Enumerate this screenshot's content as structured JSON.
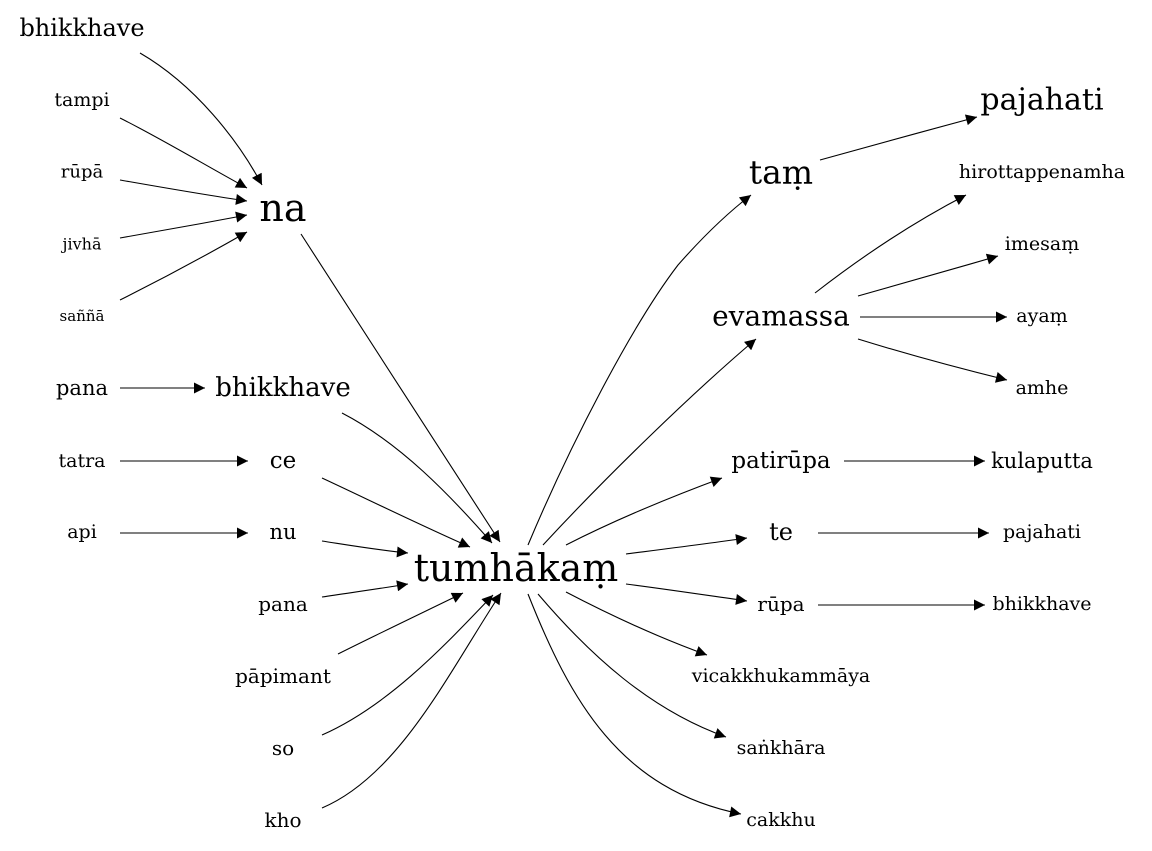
{
  "nodes": [
    {
      "id": "n_bhikkhave_top",
      "label": "bhikkhave"
    },
    {
      "id": "n_tampi",
      "label": "tampi"
    },
    {
      "id": "n_rupa1",
      "label": "rūpā"
    },
    {
      "id": "n_jivha",
      "label": "jivhā"
    },
    {
      "id": "n_sanna",
      "label": "saññā"
    },
    {
      "id": "n_na",
      "label": "na"
    },
    {
      "id": "n_pana1",
      "label": "pana"
    },
    {
      "id": "n_bhikkhave_mid",
      "label": "bhikkhave"
    },
    {
      "id": "n_tatra",
      "label": "tatra"
    },
    {
      "id": "n_ce",
      "label": "ce"
    },
    {
      "id": "n_api",
      "label": "api"
    },
    {
      "id": "n_nu",
      "label": "nu"
    },
    {
      "id": "n_pana2",
      "label": "pana"
    },
    {
      "id": "n_papimant",
      "label": "pāpimant"
    },
    {
      "id": "n_so",
      "label": "so"
    },
    {
      "id": "n_kho",
      "label": "kho"
    },
    {
      "id": "n_tumhakam",
      "label": "tumhākaṃ"
    },
    {
      "id": "n_tam",
      "label": "taṃ"
    },
    {
      "id": "n_pajahati1",
      "label": "pajahati"
    },
    {
      "id": "n_evamassa",
      "label": "evamassa"
    },
    {
      "id": "n_hirottappenamha",
      "label": "hirottappenamha"
    },
    {
      "id": "n_imesam",
      "label": "imesaṃ"
    },
    {
      "id": "n_ayam",
      "label": "ayaṃ"
    },
    {
      "id": "n_amhe",
      "label": "amhe"
    },
    {
      "id": "n_patirupa",
      "label": "patirūpa"
    },
    {
      "id": "n_kulaputta",
      "label": "kulaputta"
    },
    {
      "id": "n_te",
      "label": "te"
    },
    {
      "id": "n_pajahati2",
      "label": "pajahati"
    },
    {
      "id": "n_rupa2",
      "label": "rūpa"
    },
    {
      "id": "n_bhikkhave_right",
      "label": "bhikkhave"
    },
    {
      "id": "n_vicakkhukammaya",
      "label": "vicakkhukammāya"
    },
    {
      "id": "n_sankhara",
      "label": "saṅkhāra"
    },
    {
      "id": "n_cakkhu",
      "label": "cakkhu"
    }
  ],
  "edges": [
    {
      "from": "n_bhikkhave_top",
      "to": "n_na"
    },
    {
      "from": "n_tampi",
      "to": "n_na"
    },
    {
      "from": "n_rupa1",
      "to": "n_na"
    },
    {
      "from": "n_jivha",
      "to": "n_na"
    },
    {
      "from": "n_sanna",
      "to": "n_na"
    },
    {
      "from": "n_na",
      "to": "n_tumhakam"
    },
    {
      "from": "n_pana1",
      "to": "n_bhikkhave_mid"
    },
    {
      "from": "n_bhikkhave_mid",
      "to": "n_tumhakam"
    },
    {
      "from": "n_tatra",
      "to": "n_ce"
    },
    {
      "from": "n_ce",
      "to": "n_tumhakam"
    },
    {
      "from": "n_api",
      "to": "n_nu"
    },
    {
      "from": "n_nu",
      "to": "n_tumhakam"
    },
    {
      "from": "n_pana2",
      "to": "n_tumhakam"
    },
    {
      "from": "n_papimant",
      "to": "n_tumhakam"
    },
    {
      "from": "n_so",
      "to": "n_tumhakam"
    },
    {
      "from": "n_kho",
      "to": "n_tumhakam"
    },
    {
      "from": "n_tumhakam",
      "to": "n_tam"
    },
    {
      "from": "n_tam",
      "to": "n_pajahati1"
    },
    {
      "from": "n_tumhakam",
      "to": "n_evamassa"
    },
    {
      "from": "n_evamassa",
      "to": "n_hirottappenamha"
    },
    {
      "from": "n_evamassa",
      "to": "n_imesam"
    },
    {
      "from": "n_evamassa",
      "to": "n_ayam"
    },
    {
      "from": "n_evamassa",
      "to": "n_amhe"
    },
    {
      "from": "n_tumhakam",
      "to": "n_patirupa"
    },
    {
      "from": "n_patirupa",
      "to": "n_kulaputta"
    },
    {
      "from": "n_tumhakam",
      "to": "n_te"
    },
    {
      "from": "n_te",
      "to": "n_pajahati2"
    },
    {
      "from": "n_tumhakam",
      "to": "n_rupa2"
    },
    {
      "from": "n_rupa2",
      "to": "n_bhikkhave_right"
    },
    {
      "from": "n_tumhakam",
      "to": "n_vicakkhukammaya"
    },
    {
      "from": "n_tumhakam",
      "to": "n_sankhara"
    },
    {
      "from": "n_tumhakam",
      "to": "n_cakkhu"
    }
  ]
}
